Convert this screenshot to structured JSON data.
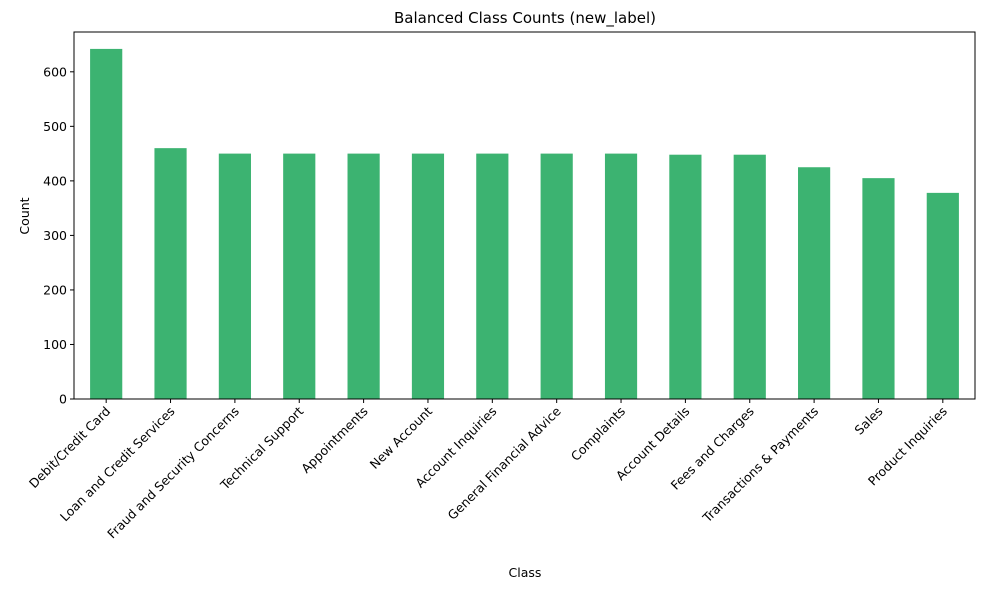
{
  "chart_data": {
    "type": "bar",
    "title": "Balanced Class Counts (new_label)",
    "xlabel": "Class",
    "ylabel": "Count",
    "ylim": [
      0,
      673
    ],
    "yticks": [
      0,
      100,
      200,
      300,
      400,
      500,
      600
    ],
    "grid": false,
    "bar_color": "#3cb371",
    "categories": [
      "Debit/Credit Card",
      "Loan and Credit Services",
      "Fraud and Security Concerns",
      "Technical Support",
      "Appointments",
      "New Account",
      "Account Inquiries",
      "General Financial Advice",
      "Complaints",
      "Account Details",
      "Fees and Charges",
      "Transactions & Payments",
      "Sales",
      "Product Inquiries"
    ],
    "values": [
      642,
      460,
      450,
      450,
      450,
      450,
      450,
      450,
      450,
      448,
      448,
      425,
      405,
      378
    ]
  }
}
